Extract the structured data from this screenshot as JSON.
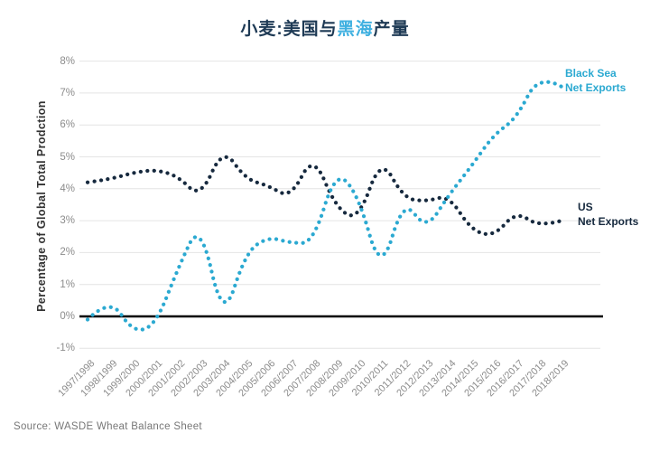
{
  "title": {
    "prefix": "小麦:美国与",
    "highlight": "黑海",
    "suffix": "产量",
    "highlight_color": "#3fb0e0",
    "main_color": "#1e3a55"
  },
  "y_axis": {
    "label": "Percentage of Global Total Prodction",
    "ticks": [
      "8%",
      "7%",
      "6%",
      "5%",
      "4%",
      "3%",
      "2%",
      "1%",
      "0%",
      "-1%"
    ]
  },
  "legend": {
    "black_sea": {
      "line1": "Black Sea",
      "line2": "Net Exports",
      "color": "#2ba9d1"
    },
    "us": {
      "line1": "US",
      "line2": "Net Exports",
      "color": "#16293e"
    }
  },
  "source": "Source: WASDE Wheat Balance Sheet",
  "colors": {
    "black_sea_series": "#2ba9d1",
    "us_series": "#16293e",
    "gridline": "#e4e4e4",
    "zero_line": "#000000",
    "tick_text": "#8c8c8c"
  },
  "chart_data": {
    "type": "line",
    "style": "dotted",
    "title": "小麦:美国与黑海产量",
    "ylabel": "Percentage of Global Total Prodction",
    "ylim": [
      -1,
      8
    ],
    "ytick_values": [
      8,
      7,
      6,
      5,
      4,
      3,
      2,
      1,
      0,
      -1
    ],
    "grid": true,
    "zero_line": true,
    "legend_position": "right-of-line-ends",
    "categories": [
      "1997/1998",
      "1998/1999",
      "1999/2000",
      "2000/2001",
      "2001/2002",
      "2002/2003",
      "2003/2004",
      "2004/2005",
      "2005/2006",
      "2006/2007",
      "2007/2008",
      "2008/2009",
      "2009/2010",
      "2010/2011",
      "2011/2012",
      "2012/2013",
      "2013/2014",
      "2014/2015",
      "2015/2016",
      "2016/2017",
      "2017/2018",
      "2018/2019"
    ],
    "series": [
      {
        "name": "US Net Exports",
        "color": "#16293e",
        "values": [
          4.2,
          4.3,
          4.5,
          4.6,
          4.4,
          3.7,
          5.3,
          4.3,
          4.1,
          3.7,
          5.1,
          3.4,
          3.0,
          5.0,
          3.7,
          3.6,
          3.8,
          2.7,
          2.5,
          3.3,
          2.8,
          3.0
        ]
      },
      {
        "name": "Black Sea Net Exports",
        "color": "#2ba9d1",
        "values": [
          -0.1,
          0.6,
          -0.5,
          -0.3,
          1.5,
          3.0,
          -0.2,
          2.0,
          2.5,
          2.3,
          2.3,
          4.6,
          3.8,
          1.3,
          3.7,
          2.7,
          3.8,
          4.7,
          5.7,
          6.2,
          7.6,
          7.2
        ]
      }
    ]
  }
}
